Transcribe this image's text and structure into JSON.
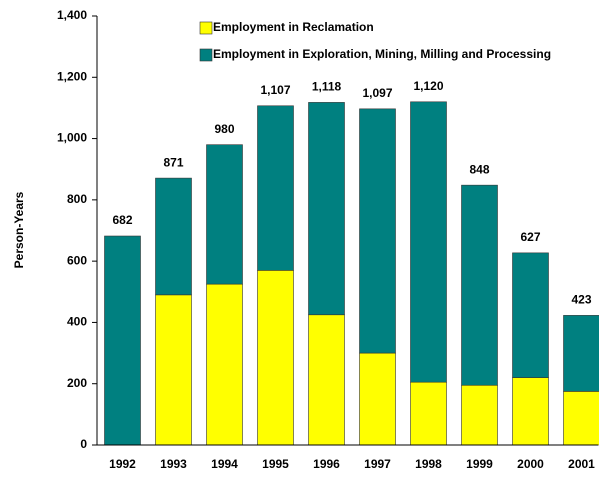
{
  "chart_data": {
    "type": "stacked_bar",
    "ylabel": "Person-Years",
    "categories": [
      "1992",
      "1993",
      "1994",
      "1995",
      "1996",
      "1997",
      "1998",
      "1999",
      "2000",
      "2001"
    ],
    "series": [
      {
        "name": "Employment in Reclamation",
        "color": "#ffff00",
        "values": [
          0,
          490,
          525,
          570,
          425,
          300,
          205,
          195,
          220,
          175
        ]
      },
      {
        "name": "Employment in Exploration, Mining, Milling and Processing",
        "color": "#008080",
        "values": [
          682,
          381,
          455,
          537,
          693,
          797,
          915,
          653,
          407,
          248
        ]
      }
    ],
    "total_labels": [
      "682",
      "871",
      "980",
      "1,107",
      "1,118",
      "1,097",
      "1,120",
      "848",
      "627",
      "423"
    ],
    "ylim": [
      0,
      1400
    ],
    "yticks": [
      0,
      200,
      400,
      600,
      800,
      {
        "value": 1000,
        "label": "1,000"
      },
      {
        "value": 1200,
        "label": "1,200"
      },
      {
        "value": 1400,
        "label": "1,400"
      }
    ]
  }
}
